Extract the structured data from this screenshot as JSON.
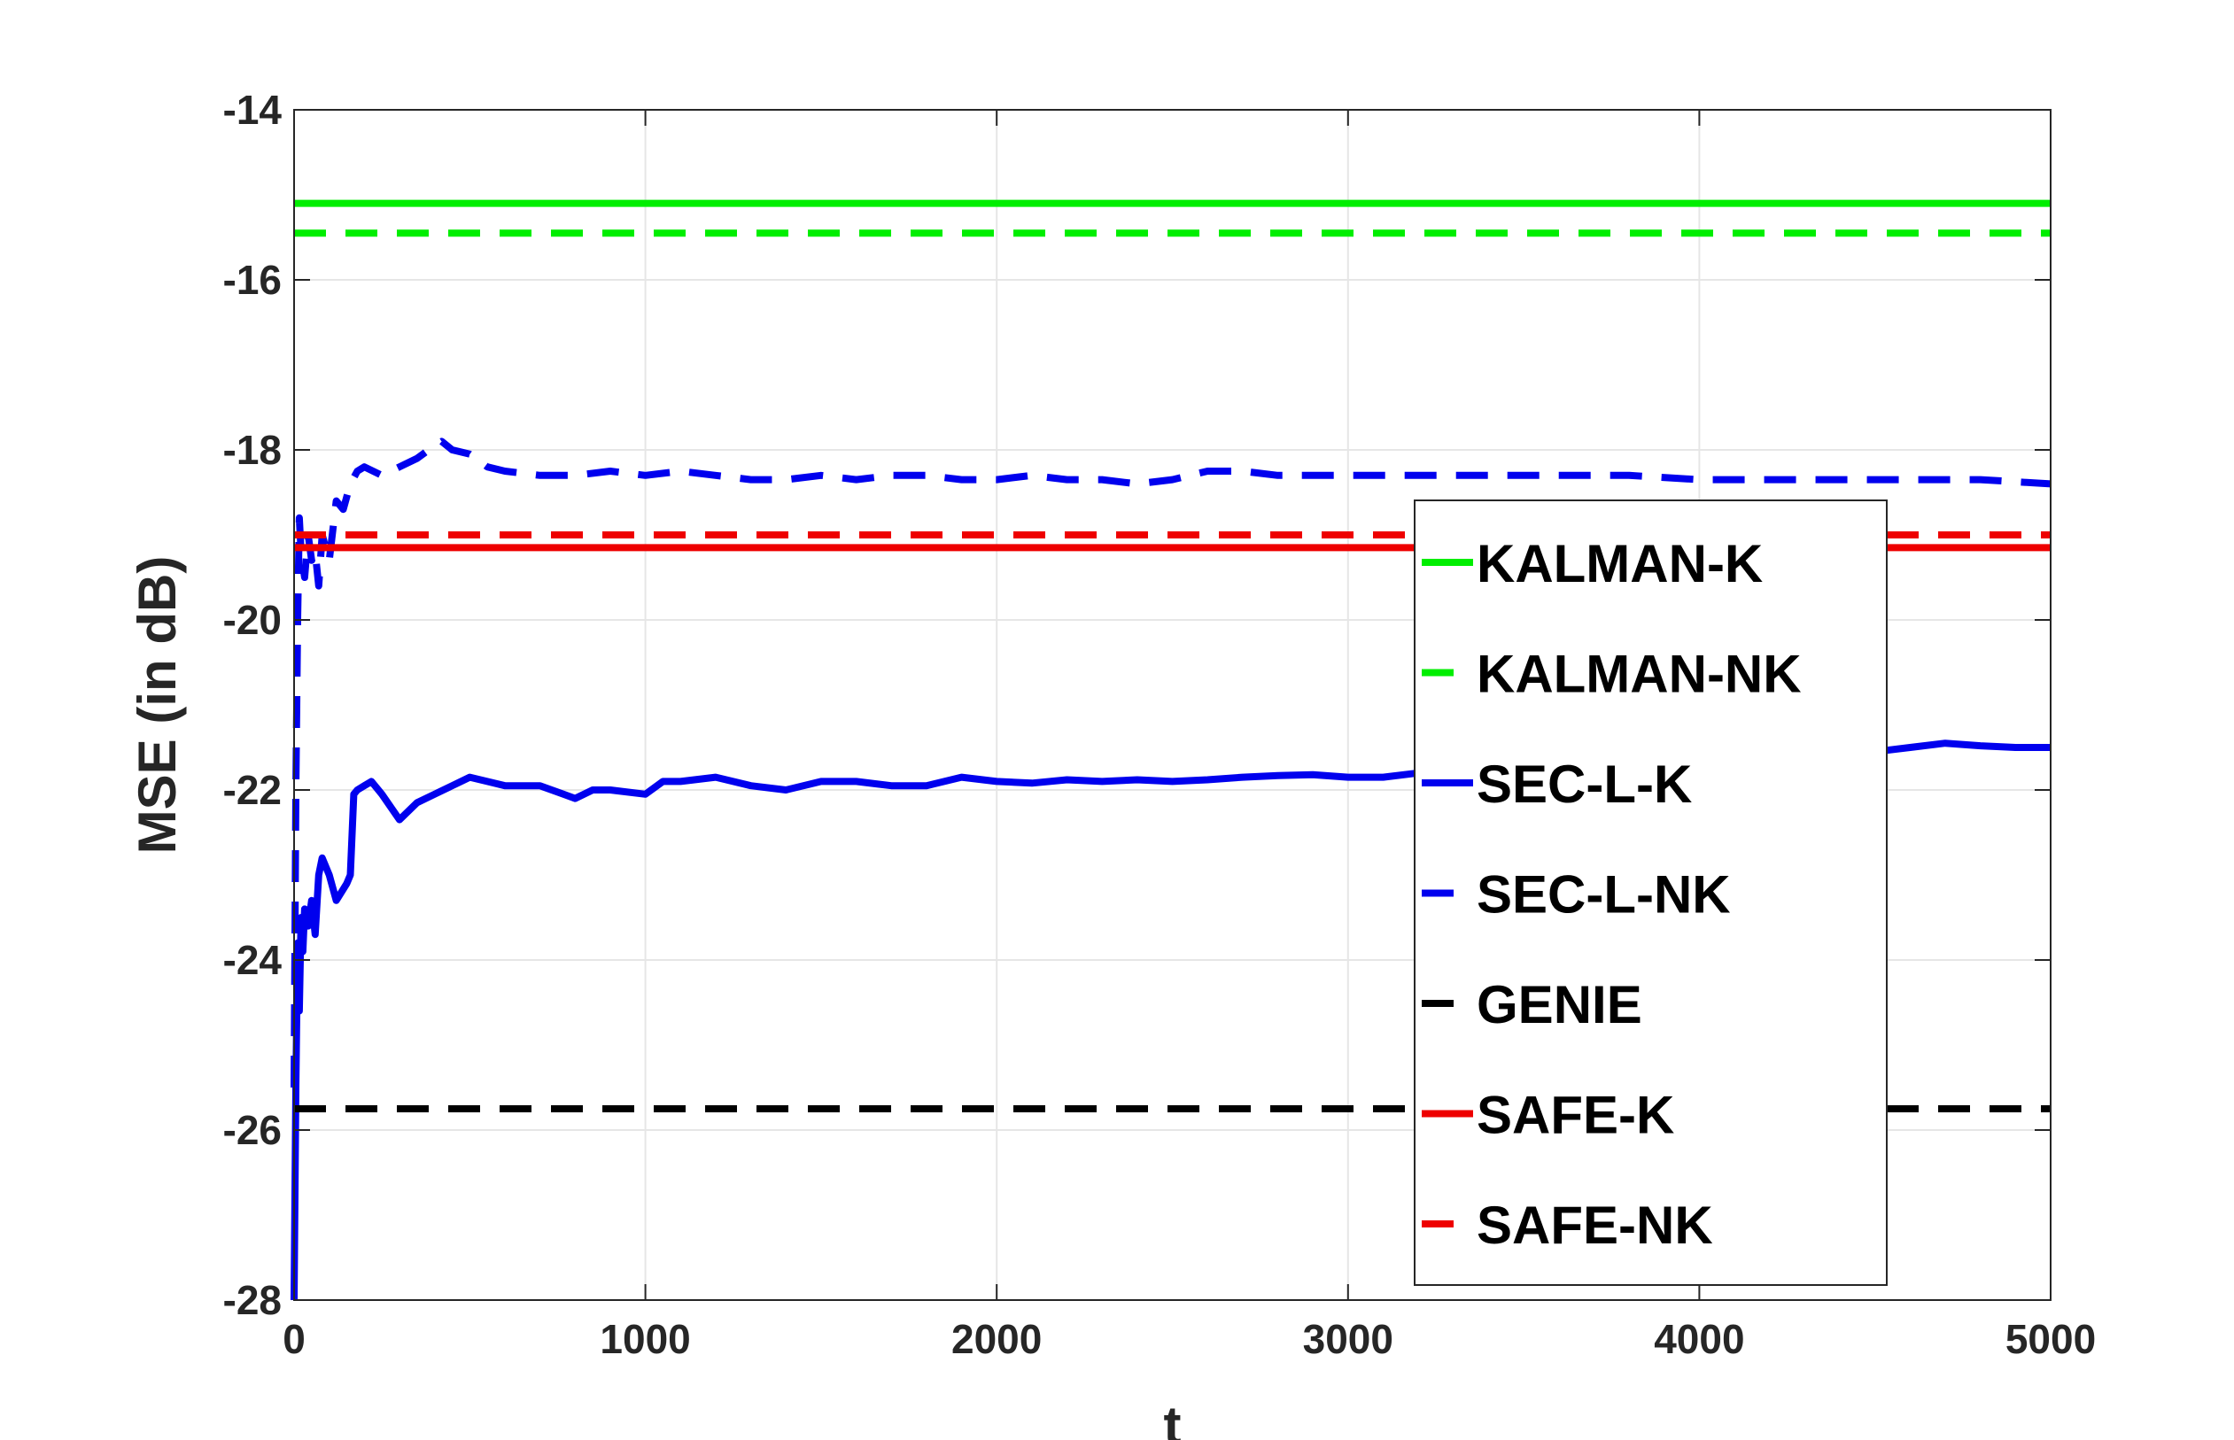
{
  "chart_data": {
    "type": "line",
    "title": "",
    "xlabel": "t",
    "ylabel": "MSE (in dB)",
    "xlim": [
      0,
      5000
    ],
    "ylim": [
      -28,
      -14
    ],
    "xticks": [
      0,
      1000,
      2000,
      3000,
      4000,
      5000
    ],
    "yticks": [
      -28,
      -26,
      -24,
      -22,
      -20,
      -18,
      -16,
      -14
    ],
    "grid": true,
    "legend_position": "center-right",
    "series": [
      {
        "name": "KALMAN-K",
        "color": "#00ee00",
        "dash": "solid",
        "x": [
          0,
          5000
        ],
        "y": [
          -15.1,
          -15.1
        ]
      },
      {
        "name": "KALMAN-NK",
        "color": "#00ee00",
        "dash": "dashed",
        "x": [
          0,
          5000
        ],
        "y": [
          -15.45,
          -15.45
        ]
      },
      {
        "name": "SEC-L-K",
        "color": "#0000ee",
        "dash": "solid",
        "x": [
          0,
          5,
          10,
          15,
          20,
          25,
          30,
          40,
          50,
          60,
          70,
          80,
          100,
          120,
          150,
          160,
          170,
          180,
          200,
          220,
          250,
          300,
          350,
          400,
          450,
          500,
          550,
          600,
          700,
          800,
          850,
          900,
          1000,
          1050,
          1100,
          1200,
          1300,
          1400,
          1500,
          1600,
          1700,
          1800,
          1900,
          2000,
          2100,
          2200,
          2300,
          2400,
          2500,
          2600,
          2700,
          2800,
          2900,
          3000,
          3100,
          3200,
          3300,
          3400,
          3500,
          3600,
          3700,
          3800,
          3900,
          4000,
          4200,
          4400,
          4500,
          4600,
          4700,
          4800,
          4900,
          5000
        ],
        "y": [
          -28.0,
          -25.5,
          -23.8,
          -24.6,
          -23.5,
          -23.9,
          -23.4,
          -23.6,
          -23.3,
          -23.7,
          -23.0,
          -22.8,
          -23.0,
          -23.3,
          -23.1,
          -23.0,
          -22.05,
          -22.0,
          -21.95,
          -21.9,
          -22.05,
          -22.35,
          -22.15,
          -22.05,
          -21.95,
          -21.85,
          -21.9,
          -21.95,
          -21.95,
          -22.1,
          -22.0,
          -22.0,
          -22.05,
          -21.9,
          -21.9,
          -21.85,
          -21.95,
          -22.0,
          -21.9,
          -21.9,
          -21.95,
          -21.95,
          -21.85,
          -21.9,
          -21.92,
          -21.88,
          -21.9,
          -21.88,
          -21.9,
          -21.88,
          -21.85,
          -21.83,
          -21.82,
          -21.85,
          -21.85,
          -21.8,
          -21.78,
          -21.75,
          -21.72,
          -21.7,
          -21.68,
          -21.65,
          -21.63,
          -21.6,
          -21.57,
          -21.55,
          -21.55,
          -21.5,
          -21.45,
          -21.48,
          -21.5,
          -21.5
        ]
      },
      {
        "name": "SEC-L-NK",
        "color": "#0000ee",
        "dash": "dashed",
        "x": [
          0,
          5,
          10,
          15,
          20,
          30,
          40,
          50,
          60,
          70,
          80,
          100,
          120,
          140,
          160,
          180,
          200,
          250,
          300,
          350,
          400,
          420,
          450,
          500,
          550,
          600,
          700,
          800,
          900,
          1000,
          1100,
          1200,
          1300,
          1400,
          1500,
          1600,
          1700,
          1800,
          1900,
          2000,
          2100,
          2200,
          2300,
          2400,
          2500,
          2550,
          2600,
          2700,
          2800,
          2900,
          3000,
          3200,
          3400,
          3600,
          3800,
          4000,
          4200,
          4400,
          4600,
          4800,
          5000
        ],
        "y": [
          -25.5,
          -22.0,
          -20.0,
          -18.8,
          -19.2,
          -19.5,
          -19.0,
          -19.3,
          -19.2,
          -19.6,
          -19.0,
          -19.3,
          -18.6,
          -18.7,
          -18.4,
          -18.25,
          -18.2,
          -18.3,
          -18.2,
          -18.1,
          -17.95,
          -17.9,
          -18.0,
          -18.05,
          -18.2,
          -18.25,
          -18.3,
          -18.3,
          -18.25,
          -18.3,
          -18.25,
          -18.3,
          -18.35,
          -18.35,
          -18.3,
          -18.35,
          -18.3,
          -18.3,
          -18.35,
          -18.35,
          -18.3,
          -18.35,
          -18.35,
          -18.4,
          -18.35,
          -18.3,
          -18.25,
          -18.25,
          -18.3,
          -18.3,
          -18.3,
          -18.3,
          -18.3,
          -18.3,
          -18.3,
          -18.35,
          -18.35,
          -18.35,
          -18.35,
          -18.35,
          -18.4
        ]
      },
      {
        "name": "GENIE",
        "color": "#000000",
        "dash": "dashed",
        "x": [
          0,
          5000
        ],
        "y": [
          -25.75,
          -25.75
        ]
      },
      {
        "name": "SAFE-K",
        "color": "#ee0000",
        "dash": "solid",
        "x": [
          0,
          5000
        ],
        "y": [
          -19.15,
          -19.15
        ]
      },
      {
        "name": "SAFE-NK",
        "color": "#ee0000",
        "dash": "dashed",
        "x": [
          0,
          5000
        ],
        "y": [
          -19.0,
          -19.0
        ]
      }
    ]
  }
}
